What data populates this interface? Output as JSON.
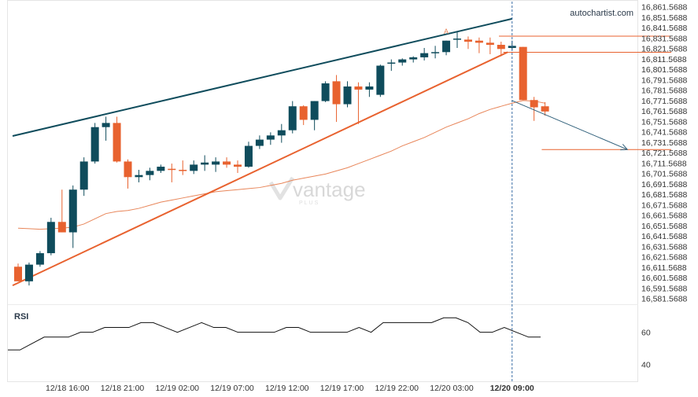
{
  "brand": "autochartist.com",
  "watermark": {
    "text": "vantage",
    "subtext": "PLUS"
  },
  "rsi_label": "RSI",
  "rsi_ticks": [
    "60",
    "40"
  ],
  "chart_data": {
    "type": "candlestick",
    "y_ticks": [
      "16,861.5688",
      "16,851.5688",
      "16,841.5688",
      "16,831.5688",
      "16,821.5688",
      "16,811.5688",
      "16,801.5688",
      "16,791.5688",
      "16,781.5688",
      "16,771.5688",
      "16,761.5688",
      "16,751.5688",
      "16,741.5688",
      "16,731.5688",
      "16,721.5688",
      "16,711.5688",
      "16,701.5688",
      "16,691.5688",
      "16,681.5688",
      "16,671.5688",
      "16,661.5688",
      "16,651.5688",
      "16,641.5688",
      "16,631.5688",
      "16,621.5688",
      "16,611.5688",
      "16,601.5688",
      "16,591.5688",
      "16,581.5688"
    ],
    "ylim": [
      16577.5,
      16865
    ],
    "x_ticks": [
      {
        "label": "12/18 16:00",
        "index": 4.5
      },
      {
        "label": "12/18 21:00",
        "index": 9.5
      },
      {
        "label": "12/19 02:00",
        "index": 14.5
      },
      {
        "label": "12/19 07:00",
        "index": 19.5
      },
      {
        "label": "12/19 12:00",
        "index": 24.5
      },
      {
        "label": "12/19 17:00",
        "index": 29.5
      },
      {
        "label": "12/19 22:00",
        "index": 34.5
      },
      {
        "label": "12/20 03:00",
        "index": 39.5
      },
      {
        "label": "12/20 09:00",
        "index": 45,
        "bold": true
      }
    ],
    "candles": [
      {
        "o": 16612,
        "h": 16615,
        "l": 16598,
        "c": 16598
      },
      {
        "o": 16598,
        "h": 16616,
        "l": 16594,
        "c": 16614
      },
      {
        "o": 16614,
        "h": 16627,
        "l": 16612,
        "c": 16625
      },
      {
        "o": 16625,
        "h": 16659,
        "l": 16623,
        "c": 16655
      },
      {
        "o": 16655,
        "h": 16686,
        "l": 16645,
        "c": 16645
      },
      {
        "o": 16645,
        "h": 16690,
        "l": 16630,
        "c": 16686
      },
      {
        "o": 16686,
        "h": 16717,
        "l": 16680,
        "c": 16713
      },
      {
        "o": 16713,
        "h": 16750,
        "l": 16711,
        "c": 16746
      },
      {
        "o": 16746,
        "h": 16756,
        "l": 16733,
        "c": 16750
      },
      {
        "o": 16750,
        "h": 16756,
        "l": 16712,
        "c": 16713
      },
      {
        "o": 16713,
        "h": 16715,
        "l": 16687,
        "c": 16698
      },
      {
        "o": 16698,
        "h": 16705,
        "l": 16693,
        "c": 16700
      },
      {
        "o": 16700,
        "h": 16707,
        "l": 16695,
        "c": 16704
      },
      {
        "o": 16704,
        "h": 16710,
        "l": 16702,
        "c": 16708
      },
      {
        "o": 16706,
        "h": 16711,
        "l": 16693,
        "c": 16705
      },
      {
        "o": 16705,
        "h": 16714,
        "l": 16700,
        "c": 16704
      },
      {
        "o": 16704,
        "h": 16714,
        "l": 16701,
        "c": 16710
      },
      {
        "o": 16710,
        "h": 16719,
        "l": 16704,
        "c": 16712
      },
      {
        "o": 16710,
        "h": 16717,
        "l": 16703,
        "c": 16713
      },
      {
        "o": 16713,
        "h": 16717,
        "l": 16707,
        "c": 16710
      },
      {
        "o": 16710,
        "h": 16714,
        "l": 16702,
        "c": 16708
      },
      {
        "o": 16708,
        "h": 16732,
        "l": 16707,
        "c": 16728
      },
      {
        "o": 16728,
        "h": 16738,
        "l": 16725,
        "c": 16734
      },
      {
        "o": 16734,
        "h": 16741,
        "l": 16729,
        "c": 16738
      },
      {
        "o": 16738,
        "h": 16749,
        "l": 16731,
        "c": 16743
      },
      {
        "o": 16743,
        "h": 16771,
        "l": 16740,
        "c": 16766
      },
      {
        "o": 16766,
        "h": 16767,
        "l": 16748,
        "c": 16753
      },
      {
        "o": 16753,
        "h": 16771,
        "l": 16743,
        "c": 16771
      },
      {
        "o": 16771,
        "h": 16790,
        "l": 16770,
        "c": 16788
      },
      {
        "o": 16790,
        "h": 16796,
        "l": 16751,
        "c": 16768
      },
      {
        "o": 16768,
        "h": 16790,
        "l": 16765,
        "c": 16785
      },
      {
        "o": 16785,
        "h": 16789,
        "l": 16749,
        "c": 16782
      },
      {
        "o": 16782,
        "h": 16789,
        "l": 16775,
        "c": 16785
      },
      {
        "o": 16777,
        "h": 16806,
        "l": 16775,
        "c": 16805
      },
      {
        "o": 16807,
        "h": 16811,
        "l": 16800,
        "c": 16808
      },
      {
        "o": 16808,
        "h": 16812,
        "l": 16805,
        "c": 16811
      },
      {
        "o": 16811,
        "h": 16814,
        "l": 16808,
        "c": 16813
      },
      {
        "o": 16813,
        "h": 16822,
        "l": 16810,
        "c": 16817
      },
      {
        "o": 16817,
        "h": 16824,
        "l": 16812,
        "c": 16818
      },
      {
        "o": 16818,
        "h": 16829,
        "l": 16815,
        "c": 16829
      },
      {
        "o": 16830,
        "h": 16838,
        "l": 16822,
        "c": 16831
      },
      {
        "o": 16830,
        "h": 16833,
        "l": 16821,
        "c": 16828
      },
      {
        "o": 16829,
        "h": 16832,
        "l": 16817,
        "c": 16827
      },
      {
        "o": 16827,
        "h": 16832,
        "l": 16816,
        "c": 16825
      },
      {
        "o": 16825,
        "h": 16828,
        "l": 16814,
        "c": 16821
      },
      {
        "o": 16822,
        "h": 16829,
        "l": 16820,
        "c": 16824
      },
      {
        "o": 16823,
        "h": 16823,
        "l": 16772,
        "c": 16772
      },
      {
        "o": 16772,
        "h": 16775,
        "l": 16752,
        "c": 16765
      },
      {
        "o": 16766,
        "h": 16770,
        "l": 16757,
        "c": 16761
      }
    ],
    "moving_average": [
      16649,
      16648.5,
      16648,
      16648.5,
      16649,
      16650,
      16653,
      16658,
      16663,
      16665,
      16666,
      16668,
      16671,
      16674,
      16676,
      16678,
      16680,
      16682,
      16684,
      16685,
      16686,
      16687,
      16688,
      16690,
      16692,
      16695,
      16697,
      16699,
      16701,
      16704,
      16707,
      16711,
      16715,
      16719,
      16723,
      16728,
      16732,
      16736,
      16741,
      16746,
      16750,
      16754,
      16759,
      16763,
      16766,
      16769,
      16771.5,
      16771,
      16769
    ],
    "resistance_line": {
      "x1": -0.5,
      "y1": 16737.5,
      "x2": 45.0,
      "y2": 16850
    },
    "support_line": {
      "x1": -0.5,
      "y1": 16594,
      "x2": 44.6,
      "y2": 16818
    },
    "forecast_arrow": {
      "x1": 45.0,
      "y1": 16771.5,
      "x2": 55.5,
      "y2": 16724.5
    },
    "level_lines": [
      {
        "price": 16833.3,
        "x1": 43.8,
        "x2": 59.5
      },
      {
        "price": 16817.8,
        "x1": 44.2,
        "x2": 59.5
      },
      {
        "price": 16724.5,
        "x1": 47.7,
        "x2": 59.5
      }
    ],
    "marker_A": {
      "label": "A",
      "index": 39,
      "price": 16835.5
    },
    "event_index": 45.0,
    "rsi": {
      "ylim": [
        30,
        75
      ],
      "values": [
        49,
        49,
        53,
        57,
        57,
        57,
        60,
        60,
        63,
        63,
        63,
        66,
        66,
        63,
        60,
        63,
        66,
        63,
        63,
        60,
        60,
        60,
        60,
        63,
        63,
        60,
        60,
        60,
        60,
        63,
        60,
        66,
        66,
        66,
        66,
        66,
        69,
        69,
        66,
        60,
        60,
        63,
        60,
        57,
        57
      ]
    }
  }
}
